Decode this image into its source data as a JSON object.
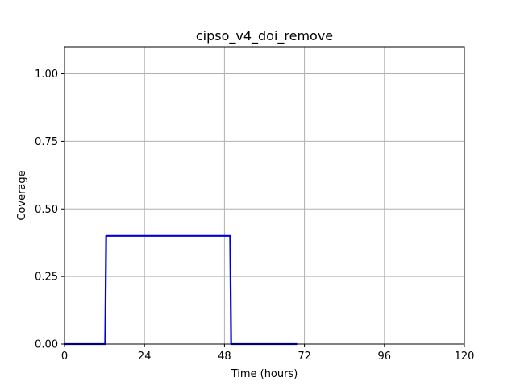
{
  "chart_data": {
    "type": "line",
    "title": "cipso_v4_doi_remove",
    "xlabel": "Time (hours)",
    "ylabel": "Coverage",
    "xlim": [
      0,
      120
    ],
    "ylim": [
      0,
      1.1
    ],
    "xticks": [
      0,
      24,
      48,
      72,
      96,
      120
    ],
    "xtick_labels": [
      "0",
      "24",
      "48",
      "72",
      "96",
      "120"
    ],
    "yticks": [
      0,
      0.25,
      0.5,
      0.75,
      1.0
    ],
    "ytick_labels": [
      "0.00",
      "0.25",
      "0.50",
      "0.75",
      "1.00"
    ],
    "grid": true,
    "series": [
      {
        "color": "#0000dd",
        "x": [
          0,
          12.2,
          12.5,
          49.7,
          50.0,
          69.8
        ],
        "y": [
          0,
          0,
          0.4,
          0.4,
          0,
          0
        ]
      }
    ]
  }
}
